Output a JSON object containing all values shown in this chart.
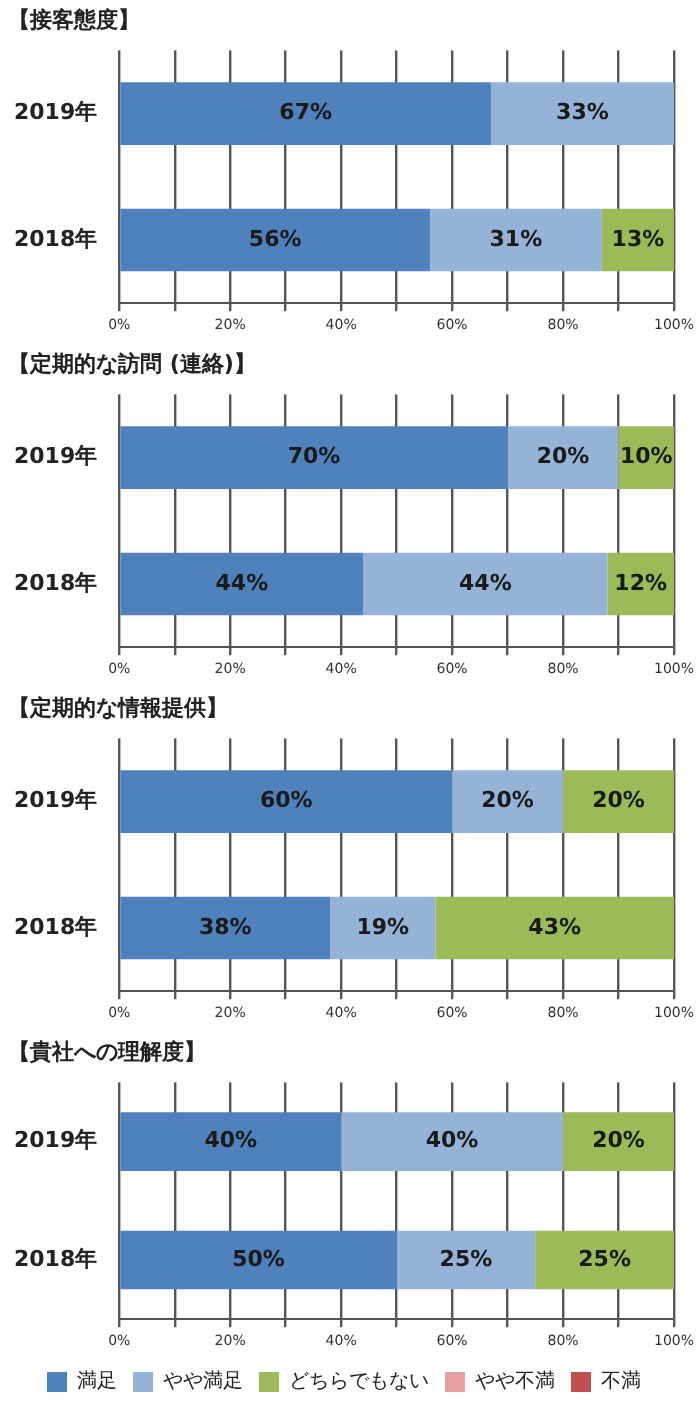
{
  "chart_data": [
    {
      "type": "bar",
      "orientation": "horizontal",
      "stacked": true,
      "title": "【接客態度】",
      "categories": [
        "2019年",
        "2018年"
      ],
      "grid": "x",
      "legend": false,
      "xlim": [
        0,
        100
      ],
      "xticks": [
        {
          "value": 0,
          "label": "0%"
        },
        {
          "value": 10,
          "label": null
        },
        {
          "value": 20,
          "label": "20%"
        },
        {
          "value": 30,
          "label": null
        },
        {
          "value": 40,
          "label": "40%"
        },
        {
          "value": 50,
          "label": null
        },
        {
          "value": 60,
          "label": "60%"
        },
        {
          "value": 70,
          "label": null
        },
        {
          "value": 80,
          "label": "80%"
        },
        {
          "value": 90,
          "label": null
        },
        {
          "value": 100,
          "label": "100%"
        }
      ],
      "series": [
        {
          "color": "#4f81bd",
          "values": [
            67,
            56
          ],
          "value_labels": [
            "67%",
            "56%"
          ]
        },
        {
          "color": "#95b3d7",
          "values": [
            33,
            31
          ],
          "value_labels": [
            "33%",
            "31%"
          ]
        },
        {
          "color": "#9bbb59",
          "values": [
            null,
            13
          ],
          "value_labels": [
            null,
            "13%"
          ]
        }
      ]
    },
    {
      "type": "bar",
      "orientation": "horizontal",
      "stacked": true,
      "title": "【定期的な訪問 (連絡)】",
      "categories": [
        "2019年",
        "2018年"
      ],
      "grid": "x",
      "legend": false,
      "xlim": [
        0,
        100
      ],
      "xticks": [
        {
          "value": 0,
          "label": "0%"
        },
        {
          "value": 10,
          "label": null
        },
        {
          "value": 20,
          "label": "20%"
        },
        {
          "value": 30,
          "label": null
        },
        {
          "value": 40,
          "label": "40%"
        },
        {
          "value": 50,
          "label": null
        },
        {
          "value": 60,
          "label": "60%"
        },
        {
          "value": 70,
          "label": null
        },
        {
          "value": 80,
          "label": "80%"
        },
        {
          "value": 90,
          "label": null
        },
        {
          "value": 100,
          "label": "100%"
        }
      ],
      "series": [
        {
          "color": "#4f81bd",
          "values": [
            70,
            44
          ],
          "value_labels": [
            "70%",
            "44%"
          ]
        },
        {
          "color": "#95b3d7",
          "values": [
            20,
            44
          ],
          "value_labels": [
            "20%",
            "44%"
          ]
        },
        {
          "color": "#9bbb59",
          "values": [
            10,
            12
          ],
          "value_labels": [
            "10%",
            "12%"
          ]
        }
      ]
    },
    {
      "type": "bar",
      "orientation": "horizontal",
      "stacked": true,
      "title": "【定期的な情報提供】",
      "categories": [
        "2019年",
        "2018年"
      ],
      "grid": "x",
      "legend": false,
      "xlim": [
        0,
        100
      ],
      "xticks": [
        {
          "value": 0,
          "label": "0%"
        },
        {
          "value": 10,
          "label": null
        },
        {
          "value": 20,
          "label": "20%"
        },
        {
          "value": 30,
          "label": null
        },
        {
          "value": 40,
          "label": "40%"
        },
        {
          "value": 50,
          "label": null
        },
        {
          "value": 60,
          "label": "60%"
        },
        {
          "value": 70,
          "label": null
        },
        {
          "value": 80,
          "label": "80%"
        },
        {
          "value": 90,
          "label": null
        },
        {
          "value": 100,
          "label": "100%"
        }
      ],
      "series": [
        {
          "color": "#4f81bd",
          "values": [
            60,
            38
          ],
          "value_labels": [
            "60%",
            "38%"
          ]
        },
        {
          "color": "#95b3d7",
          "values": [
            20,
            19
          ],
          "value_labels": [
            "20%",
            "19%"
          ]
        },
        {
          "color": "#9bbb59",
          "values": [
            20,
            43
          ],
          "value_labels": [
            "20%",
            "43%"
          ]
        }
      ]
    },
    {
      "type": "bar",
      "orientation": "horizontal",
      "stacked": true,
      "title": "【貴社への理解度】",
      "categories": [
        "2019年",
        "2018年"
      ],
      "grid": "x",
      "legend": "bottom",
      "xlim": [
        0,
        100
      ],
      "xticks": [
        {
          "value": 0,
          "label": "0%"
        },
        {
          "value": 10,
          "label": null
        },
        {
          "value": 20,
          "label": "20%"
        },
        {
          "value": 30,
          "label": null
        },
        {
          "value": 40,
          "label": "40%"
        },
        {
          "value": 50,
          "label": null
        },
        {
          "value": 60,
          "label": "60%"
        },
        {
          "value": 70,
          "label": null
        },
        {
          "value": 80,
          "label": "80%"
        },
        {
          "value": 90,
          "label": null
        },
        {
          "value": 100,
          "label": "100%"
        }
      ],
      "series": [
        {
          "name": "満足",
          "color": "#4f81bd",
          "values": [
            40,
            50
          ],
          "value_labels": [
            "40%",
            "50%"
          ]
        },
        {
          "name": "やや満足",
          "color": "#95b3d7",
          "values": [
            40,
            25
          ],
          "value_labels": [
            "40%",
            "25%"
          ]
        },
        {
          "name": "どちらでもない",
          "color": "#9bbb59",
          "values": [
            20,
            25
          ],
          "value_labels": [
            "20%",
            "25%"
          ]
        },
        {
          "name": "やや不満",
          "color": "#e6a0a0",
          "values": [
            0,
            0
          ]
        },
        {
          "name": "不満",
          "color": "#c0504d",
          "values": [
            0,
            0
          ]
        }
      ]
    }
  ]
}
